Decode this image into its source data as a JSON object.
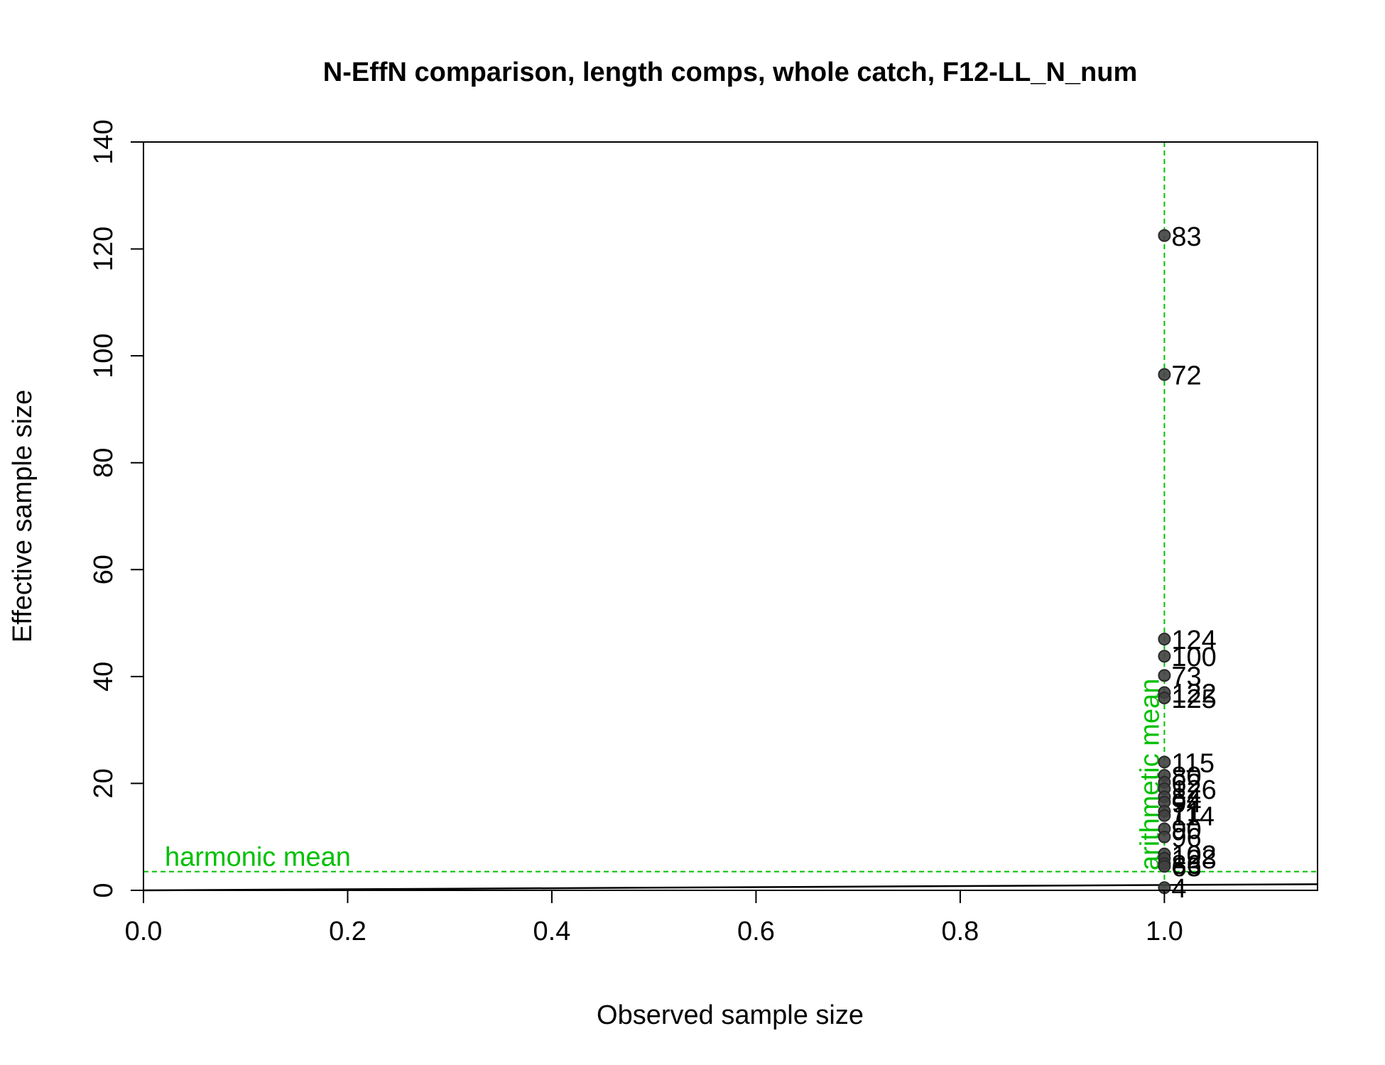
{
  "chart_data": {
    "type": "scatter",
    "title": "N-EffN comparison, length comps, whole catch, F12-LL_N_num",
    "xlabel": "Observed sample size",
    "ylabel": "Effective sample size",
    "xlim": [
      0,
      1.15
    ],
    "ylim": [
      0,
      140
    ],
    "x_ticks": [
      "0.0",
      "0.2",
      "0.4",
      "0.6",
      "0.8",
      "1.0"
    ],
    "y_ticks": [
      "0",
      "20",
      "40",
      "60",
      "80",
      "100",
      "120",
      "140"
    ],
    "grid": false,
    "legend": "none",
    "point_color": "#404040",
    "reference_color": "#00c000",
    "points": [
      {
        "x": 1.0,
        "y": 122.5,
        "label": "83"
      },
      {
        "x": 1.0,
        "y": 96.5,
        "label": "72"
      },
      {
        "x": 1.0,
        "y": 47.0,
        "label": "124"
      },
      {
        "x": 1.0,
        "y": 43.8,
        "label": "100"
      },
      {
        "x": 1.0,
        "y": 40.2,
        "label": "73"
      },
      {
        "x": 1.0,
        "y": 37.0,
        "label": "122"
      },
      {
        "x": 1.0,
        "y": 36.0,
        "label": "125"
      },
      {
        "x": 1.0,
        "y": 24.0,
        "label": "115"
      },
      {
        "x": 1.0,
        "y": 21.5,
        "label": "80"
      },
      {
        "x": 1.0,
        "y": 20.2,
        "label": "62"
      },
      {
        "x": 1.0,
        "y": 19.0,
        "label": "126"
      },
      {
        "x": 1.0,
        "y": 17.5,
        "label": "84"
      },
      {
        "x": 1.0,
        "y": 16.5,
        "label": "94"
      },
      {
        "x": 1.0,
        "y": 14.8,
        "label": "71"
      },
      {
        "x": 1.0,
        "y": 14.0,
        "label": "114"
      },
      {
        "x": 1.0,
        "y": 11.5,
        "label": "90"
      },
      {
        "x": 1.0,
        "y": 10.0,
        "label": "96"
      },
      {
        "x": 1.0,
        "y": 6.8,
        "label": "102"
      },
      {
        "x": 1.0,
        "y": 6.0,
        "label": "128"
      },
      {
        "x": 1.0,
        "y": 5.0,
        "label": "86"
      },
      {
        "x": 1.0,
        "y": 4.5,
        "label": "63"
      },
      {
        "x": 1.0,
        "y": 0.5,
        "label": "4"
      }
    ],
    "identity_line": {
      "x": [
        0,
        1.15
      ],
      "y": [
        0,
        1.15
      ]
    },
    "harmonic_mean": {
      "value": 3.5,
      "label": "harmonic mean"
    },
    "arithmetic_mean": {
      "value": 1.0,
      "label": "arithmetic mean"
    }
  }
}
